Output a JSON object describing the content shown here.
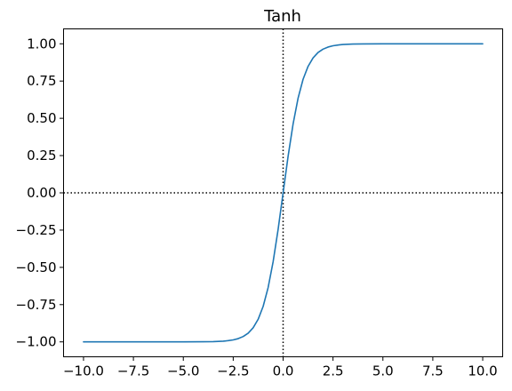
{
  "chart_data": {
    "type": "line",
    "title": "Tanh",
    "xlabel": "",
    "ylabel": "",
    "xlim": [
      -11,
      11
    ],
    "ylim": [
      -1.1,
      1.1
    ],
    "x_ticks": [
      -10.0,
      -7.5,
      -5.0,
      -2.5,
      0.0,
      2.5,
      5.0,
      7.5,
      10.0
    ],
    "x_tick_labels": [
      "−10.0",
      "−7.5",
      "−5.0",
      "−2.5",
      "0.0",
      "2.5",
      "5.0",
      "7.5",
      "10.0"
    ],
    "y_ticks": [
      1.0,
      0.75,
      0.5,
      0.25,
      0.0,
      -0.25,
      -0.5,
      -0.75,
      -1.0
    ],
    "y_tick_labels": [
      "1.00",
      "0.75",
      "0.50",
      "0.25",
      "0.00",
      "−0.25",
      "−0.50",
      "−0.75",
      "−1.00"
    ],
    "grid": false,
    "reference_lines": [
      {
        "orientation": "vertical",
        "value": 0,
        "style": "dotted",
        "color": "#000000"
      },
      {
        "orientation": "horizontal",
        "value": 0,
        "style": "dotted",
        "color": "#000000"
      }
    ],
    "series": [
      {
        "color": "#1f77b4",
        "x": [
          -10,
          -9,
          -8,
          -7,
          -6,
          -5,
          -4,
          -3.5,
          -3,
          -2.75,
          -2.5,
          -2.25,
          -2,
          -1.75,
          -1.5,
          -1.25,
          -1,
          -0.75,
          -0.5,
          -0.25,
          0,
          0.25,
          0.5,
          0.75,
          1,
          1.25,
          1.5,
          1.75,
          2,
          2.25,
          2.5,
          2.75,
          3,
          3.5,
          4,
          5,
          6,
          7,
          8,
          9,
          10
        ],
        "y": [
          -1.0,
          -1.0,
          -1.0,
          -1.0,
          -1.0,
          -0.9999,
          -0.9993,
          -0.9982,
          -0.9951,
          -0.9918,
          -0.9866,
          -0.978,
          -0.964,
          -0.9414,
          -0.9051,
          -0.8483,
          -0.7616,
          -0.6351,
          -0.4621,
          -0.2449,
          0.0,
          0.2449,
          0.4621,
          0.6351,
          0.7616,
          0.8483,
          0.9051,
          0.9414,
          0.964,
          0.978,
          0.9866,
          0.9918,
          0.9951,
          0.9982,
          0.9993,
          0.9999,
          1.0,
          1.0,
          1.0,
          1.0,
          1.0
        ]
      }
    ]
  }
}
